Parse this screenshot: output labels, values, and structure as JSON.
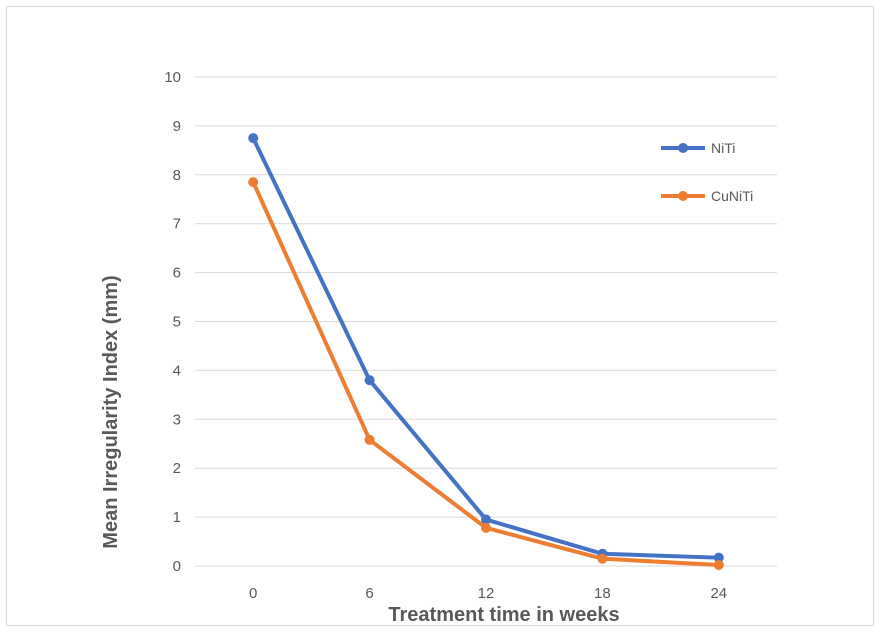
{
  "chart_data": {
    "type": "line",
    "title": "",
    "xlabel": "Treatment time in weeks",
    "ylabel": "Mean Irregularity Index (mm)",
    "categories": [
      "0",
      "6",
      "12",
      "18",
      "24"
    ],
    "ylim": [
      0,
      10
    ],
    "yticks": [
      0,
      1,
      2,
      3,
      4,
      5,
      6,
      7,
      8,
      9,
      10
    ],
    "grid": true,
    "legend_position": "right",
    "series": [
      {
        "name": "NiTi",
        "color": "#4472C4",
        "values": [
          8.75,
          3.8,
          0.95,
          0.25,
          0.17
        ]
      },
      {
        "name": "CuNiTi",
        "color": "#ED7D31",
        "values": [
          7.85,
          2.58,
          0.78,
          0.15,
          0.02
        ]
      }
    ]
  }
}
